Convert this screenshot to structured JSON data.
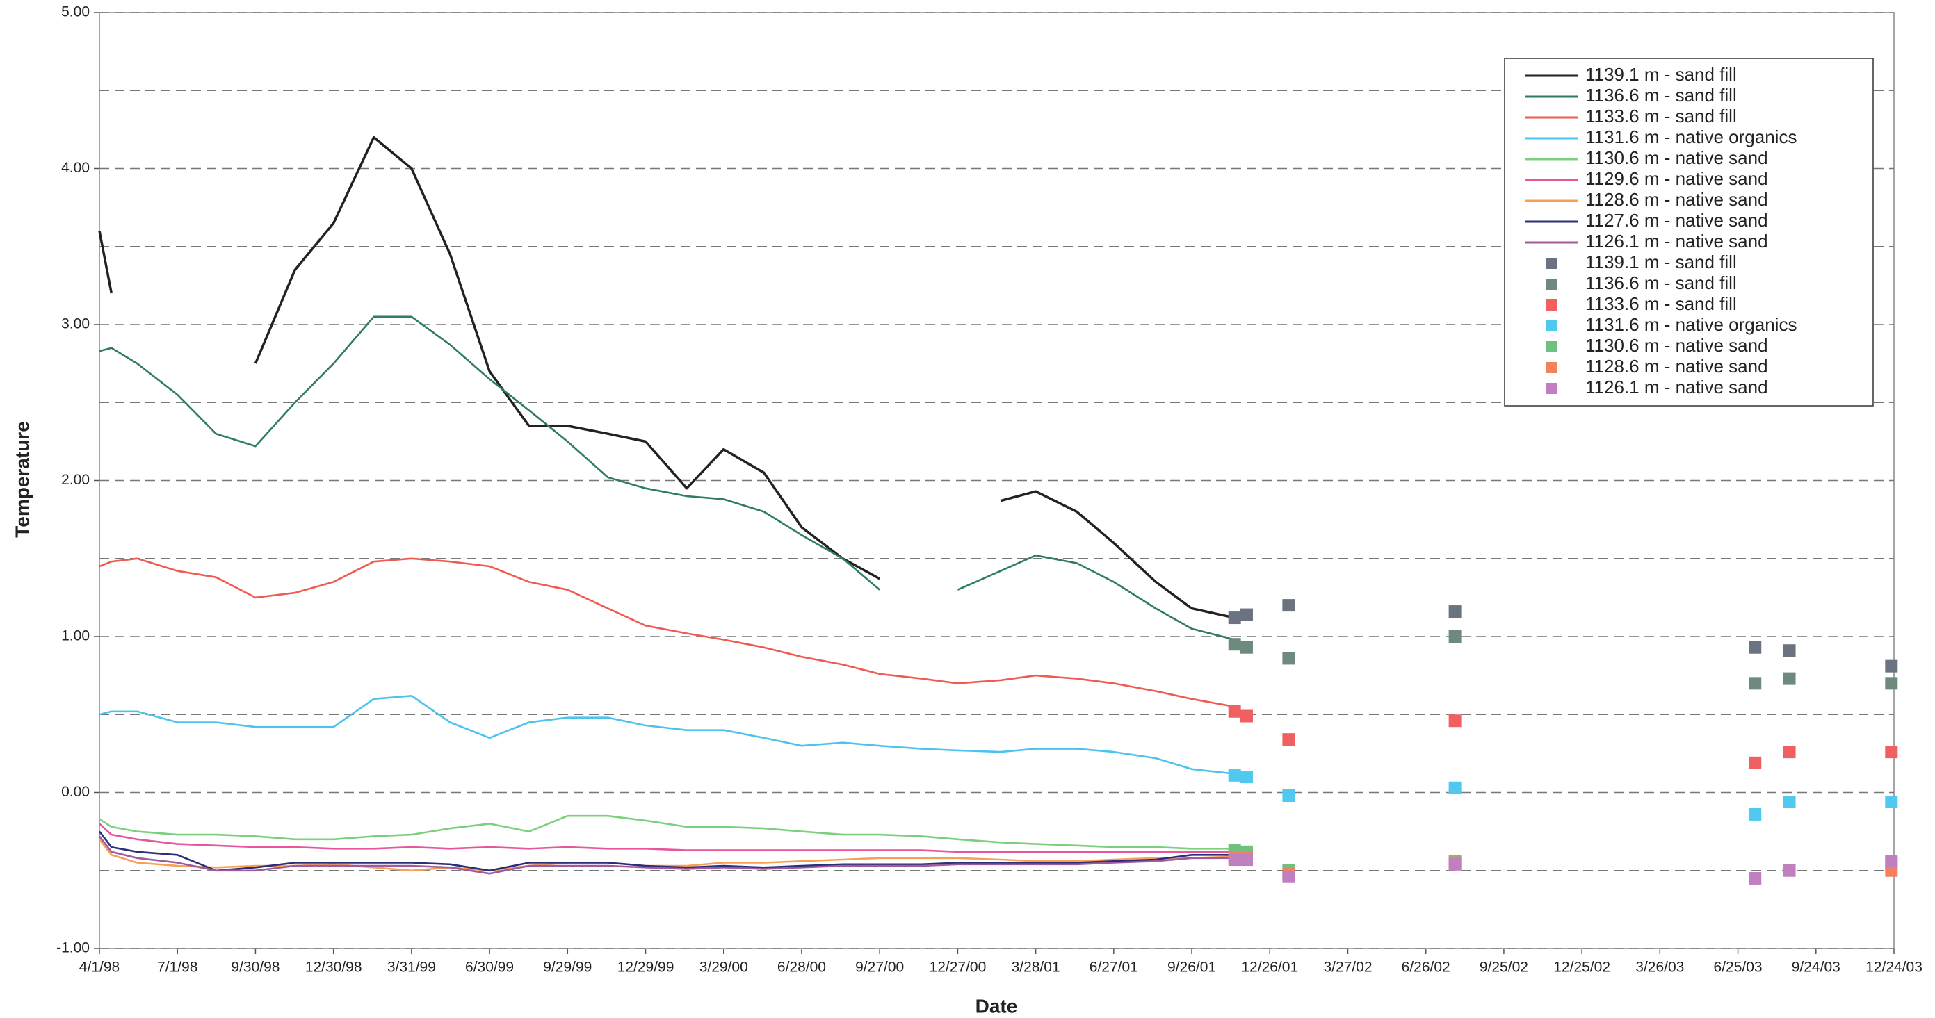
{
  "chart_data": {
    "type": "line",
    "y_label": "Temperature",
    "x_label": "Date",
    "ylim": [
      -1,
      5
    ],
    "yticks": [
      {
        "value": -1,
        "label": "-1.00"
      },
      {
        "value": 0,
        "label": "0.00"
      },
      {
        "value": 1,
        "label": "1.00"
      },
      {
        "value": 2,
        "label": "2.00"
      },
      {
        "value": 3,
        "label": "3.00"
      },
      {
        "value": 4,
        "label": "4.00"
      },
      {
        "value": 5,
        "label": "5.00"
      }
    ],
    "minor_yticks": [
      -0.5,
      0.5,
      1.5,
      2.5,
      3.5,
      4.5
    ],
    "grid": true,
    "xlim": [
      "4/1/98",
      "12/24/03"
    ],
    "xticks": [
      "4/1/98",
      "7/1/98",
      "9/30/98",
      "12/30/98",
      "3/31/99",
      "6/30/99",
      "9/29/99",
      "12/29/99",
      "3/29/00",
      "6/28/00",
      "9/27/00",
      "12/27/00",
      "3/28/01",
      "6/27/01",
      "9/26/01",
      "12/26/01",
      "3/27/02",
      "6/26/02",
      "9/25/02",
      "12/25/02",
      "3/26/03",
      "6/25/03",
      "9/24/03",
      "12/24/03"
    ],
    "legend": "upper right",
    "x": [
      "4/1/98",
      "4/15/98",
      "5/15/98",
      "7/1/98",
      "8/15/98",
      "9/30/98",
      "11/15/98",
      "12/30/98",
      "2/15/99",
      "3/31/99",
      "5/15/99",
      "6/30/99",
      "8/15/99",
      "9/29/99",
      "11/15/99",
      "12/29/99",
      "2/15/00",
      "3/29/00",
      "5/15/00",
      "6/28/00",
      "8/15/00",
      "9/27/00",
      "11/15/00",
      "12/27/00",
      "2/15/01",
      "3/28/01",
      "5/15/01",
      "6/27/01",
      "8/15/01",
      "9/26/01",
      "11/15/01"
    ],
    "series": [
      {
        "name": "1139.1 m - sand fill",
        "style": "line",
        "color": "#222222",
        "values": [
          3.6,
          3.2,
          null,
          null,
          null,
          2.75,
          3.35,
          3.65,
          4.2,
          4.0,
          3.45,
          2.7,
          2.35,
          2.35,
          2.3,
          2.25,
          1.95,
          2.2,
          2.05,
          1.7,
          1.5,
          1.37,
          null,
          null,
          1.87,
          1.93,
          1.8,
          1.6,
          1.35,
          1.18,
          1.12
        ]
      },
      {
        "name": "1136.6 m - sand fill",
        "style": "line",
        "color": "#2e7d5b",
        "values": [
          2.83,
          2.85,
          2.75,
          2.55,
          2.3,
          2.22,
          2.5,
          2.75,
          3.05,
          3.05,
          2.87,
          2.65,
          2.45,
          2.25,
          2.02,
          1.95,
          1.9,
          1.88,
          1.8,
          1.65,
          1.5,
          1.3,
          null,
          1.3,
          1.42,
          1.52,
          1.47,
          1.35,
          1.18,
          1.05,
          0.98
        ]
      },
      {
        "name": "1133.6 m - sand fill",
        "style": "line",
        "color": "#f05a50",
        "values": [
          1.45,
          1.48,
          1.5,
          1.42,
          1.38,
          1.25,
          1.28,
          1.35,
          1.48,
          1.5,
          1.48,
          1.45,
          1.35,
          1.3,
          1.18,
          1.07,
          1.02,
          0.98,
          0.93,
          0.87,
          0.82,
          0.76,
          0.73,
          0.7,
          0.72,
          0.75,
          0.73,
          0.7,
          0.65,
          0.6,
          0.55
        ]
      },
      {
        "name": "1131.6 m - native organics",
        "style": "line",
        "color": "#4cc3ee",
        "values": [
          0.5,
          0.52,
          0.52,
          0.45,
          0.45,
          0.42,
          0.42,
          0.42,
          0.6,
          0.62,
          0.45,
          0.35,
          0.45,
          0.48,
          0.48,
          0.43,
          0.4,
          0.4,
          0.35,
          0.3,
          0.32,
          0.3,
          0.28,
          0.27,
          0.26,
          0.28,
          0.28,
          0.26,
          0.22,
          0.15,
          0.12
        ]
      },
      {
        "name": "1130.6 m - native sand",
        "style": "line",
        "color": "#7ccf7c",
        "values": [
          -0.17,
          -0.22,
          -0.25,
          -0.27,
          -0.27,
          -0.28,
          -0.3,
          -0.3,
          -0.28,
          -0.27,
          -0.23,
          -0.2,
          -0.25,
          -0.15,
          -0.15,
          -0.18,
          -0.22,
          -0.22,
          -0.23,
          -0.25,
          -0.27,
          -0.27,
          -0.28,
          -0.3,
          -0.32,
          -0.33,
          -0.34,
          -0.35,
          -0.35,
          -0.36,
          -0.36
        ]
      },
      {
        "name": "1129.6 m - native sand",
        "style": "line",
        "color": "#e8559b",
        "values": [
          -0.2,
          -0.27,
          -0.3,
          -0.33,
          -0.34,
          -0.35,
          -0.35,
          -0.36,
          -0.36,
          -0.35,
          -0.36,
          -0.35,
          -0.36,
          -0.35,
          -0.36,
          -0.36,
          -0.37,
          -0.37,
          -0.37,
          -0.37,
          -0.37,
          -0.37,
          -0.37,
          -0.38,
          -0.38,
          -0.38,
          -0.38,
          -0.38,
          -0.38,
          -0.38,
          -0.38
        ]
      },
      {
        "name": "1128.6 m - native sand",
        "style": "line",
        "color": "#f7a055",
        "values": [
          -0.3,
          -0.4,
          -0.45,
          -0.47,
          -0.48,
          -0.47,
          -0.47,
          -0.46,
          -0.48,
          -0.5,
          -0.48,
          -0.5,
          -0.47,
          -0.45,
          -0.45,
          -0.47,
          -0.47,
          -0.45,
          -0.45,
          -0.44,
          -0.43,
          -0.42,
          -0.42,
          -0.42,
          -0.43,
          -0.44,
          -0.44,
          -0.43,
          -0.42,
          -0.42,
          -0.41
        ]
      },
      {
        "name": "1127.6 m - native sand",
        "style": "line",
        "color": "#2b2f7a",
        "values": [
          -0.25,
          -0.35,
          -0.38,
          -0.4,
          -0.5,
          -0.48,
          -0.45,
          -0.45,
          -0.45,
          -0.45,
          -0.46,
          -0.5,
          -0.45,
          -0.45,
          -0.45,
          -0.47,
          -0.48,
          -0.47,
          -0.48,
          -0.47,
          -0.46,
          -0.46,
          -0.46,
          -0.45,
          -0.45,
          -0.45,
          -0.45,
          -0.44,
          -0.43,
          -0.4,
          -0.4
        ]
      },
      {
        "name": "1126.1 m - native sand",
        "style": "line",
        "color": "#a05aa0",
        "values": [
          -0.28,
          -0.38,
          -0.42,
          -0.45,
          -0.5,
          -0.5,
          -0.47,
          -0.47,
          -0.47,
          -0.47,
          -0.48,
          -0.52,
          -0.47,
          -0.47,
          -0.47,
          -0.48,
          -0.49,
          -0.48,
          -0.49,
          -0.48,
          -0.47,
          -0.47,
          -0.47,
          -0.46,
          -0.46,
          -0.46,
          -0.46,
          -0.45,
          -0.44,
          -0.42,
          -0.42
        ]
      },
      {
        "name": "1139.1 m - sand fill",
        "style": "marker",
        "color": "#6b7280",
        "x": [
          "11/15/01",
          "11/29/01",
          "1/17/02",
          "7/30/02",
          "7/15/03",
          "8/24/03",
          "12/21/03"
        ],
        "values": [
          1.12,
          1.14,
          1.2,
          1.16,
          0.93,
          0.91,
          0.81
        ]
      },
      {
        "name": "1136.6 m - sand fill",
        "style": "marker",
        "color": "#6e8a7e",
        "x": [
          "11/15/01",
          "11/29/01",
          "1/17/02",
          "7/30/02",
          "7/15/03",
          "8/24/03",
          "12/21/03"
        ],
        "values": [
          0.95,
          0.93,
          0.86,
          1.0,
          0.7,
          0.73,
          0.7
        ]
      },
      {
        "name": "1133.6 m - sand fill",
        "style": "marker",
        "color": "#f06060",
        "x": [
          "11/15/01",
          "11/29/01",
          "1/17/02",
          "7/30/02",
          "7/15/03",
          "8/24/03",
          "12/21/03"
        ],
        "values": [
          0.52,
          0.49,
          0.34,
          0.46,
          0.19,
          0.26,
          0.26
        ]
      },
      {
        "name": "1131.6 m - native organics",
        "style": "marker",
        "color": "#50c8f0",
        "x": [
          "11/15/01",
          "11/29/01",
          "1/17/02",
          "7/30/02",
          "7/15/03",
          "8/24/03",
          "12/21/03"
        ],
        "values": [
          0.11,
          0.1,
          -0.02,
          0.03,
          -0.14,
          -0.06,
          -0.06
        ]
      },
      {
        "name": "1130.6 m - native sand",
        "style": "marker",
        "color": "#70c080",
        "x": [
          "11/15/01",
          "11/29/01",
          "1/17/02",
          "7/30/02",
          "12/21/03"
        ],
        "values": [
          -0.37,
          -0.38,
          -0.5,
          -0.44,
          -0.46
        ]
      },
      {
        "name": "1128.6 m - native sand",
        "style": "marker",
        "color": "#f48060",
        "x": [
          "11/15/01",
          "11/29/01",
          "1/17/02",
          "7/30/02",
          "12/21/03"
        ],
        "values": [
          -0.42,
          -0.42,
          -0.52,
          -0.45,
          -0.5
        ]
      },
      {
        "name": "1126.1 m - native sand",
        "style": "marker",
        "color": "#c080c0",
        "x": [
          "11/15/01",
          "11/29/01",
          "1/17/02",
          "7/30/02",
          "7/15/03",
          "8/24/03",
          "12/21/03"
        ],
        "values": [
          -0.43,
          -0.43,
          -0.54,
          -0.46,
          -0.55,
          -0.5,
          -0.44
        ]
      }
    ]
  }
}
